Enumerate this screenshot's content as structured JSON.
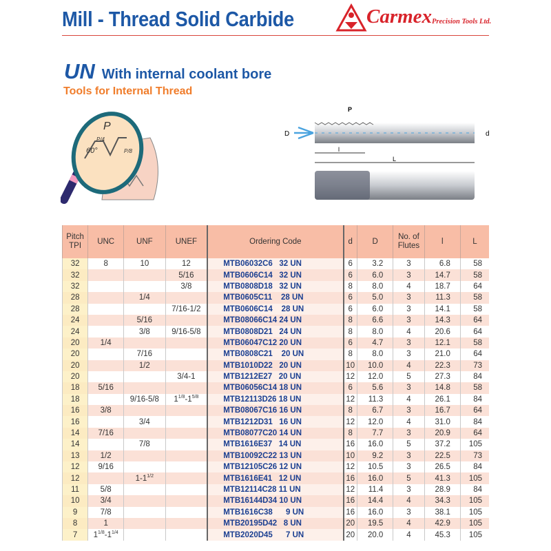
{
  "header": {
    "title": "Mill - Thread Solid Carbide",
    "logo_text": "Carmex",
    "logo_sub": "Precision Tools Ltd."
  },
  "section": {
    "type": "UN",
    "subtitle": "With internal coolant bore",
    "tagline": "Tools for Internal Thread"
  },
  "diagram": {
    "labels": {
      "P": "P",
      "P4": "P/4",
      "P8": "P/8",
      "angle": "60°",
      "D": "D",
      "d": "d",
      "l": "l",
      "L": "L"
    }
  },
  "colors": {
    "title": "#1d58a6",
    "accent": "#f07d2b",
    "brand": "#d8232a",
    "header_bg": "#f8bda6",
    "row_alt": "#fbe1d7",
    "code": "#1b3f91"
  },
  "table": {
    "headers": [
      "Pitch\nTPI",
      "UNC",
      "UNF",
      "UNEF",
      "Ordering Code",
      "d",
      "D",
      "No. of\nFlutes",
      "l",
      "L"
    ],
    "rows": [
      [
        "32",
        "8",
        "10",
        "12",
        "MTB06032C6   32 UN",
        "6",
        "3.2",
        "3",
        "6.8",
        "58"
      ],
      [
        "32",
        "",
        "",
        "5/16",
        "MTB0606C14   32 UN",
        "6",
        "6.0",
        "3",
        "14.7",
        "58"
      ],
      [
        "32",
        "",
        "",
        "3/8",
        "MTB0808D18   32 UN",
        "8",
        "8.0",
        "4",
        "18.7",
        "64"
      ],
      [
        "28",
        "",
        "1/4",
        "",
        "MTB0605C11    28 UN",
        "6",
        "5.0",
        "3",
        "11.3",
        "58"
      ],
      [
        "28",
        "",
        "",
        "7/16-1/2",
        "MTB0606C14    28 UN",
        "6",
        "6.0",
        "3",
        "14.1",
        "58"
      ],
      [
        "24",
        "",
        "5/16",
        "",
        "MTB08066C14 24 UN",
        "8",
        "6.6",
        "3",
        "14.3",
        "64"
      ],
      [
        "24",
        "",
        "3/8",
        "9/16-5/8",
        "MTB0808D21   24 UN",
        "8",
        "8.0",
        "4",
        "20.6",
        "64"
      ],
      [
        "20",
        "1/4",
        "",
        "",
        "MTB06047C12 20 UN",
        "6",
        "4.7",
        "3",
        "12.1",
        "58"
      ],
      [
        "20",
        "",
        "7/16",
        "",
        "MTB0808C21    20 UN",
        "8",
        "8.0",
        "3",
        "21.0",
        "64"
      ],
      [
        "20",
        "",
        "1/2",
        "",
        "MTB1010D22   20 UN",
        "10",
        "10.0",
        "4",
        "22.3",
        "73"
      ],
      [
        "20",
        "",
        "",
        "3/4-1",
        "MTB1212E27   20 UN",
        "12",
        "12.0",
        "5",
        "27.3",
        "84"
      ],
      [
        "18",
        "5/16",
        "",
        "",
        "MTB06056C14 18 UN",
        "6",
        "5.6",
        "3",
        "14.8",
        "58"
      ],
      [
        "18",
        "",
        "9/16-5/8",
        [
          [
            "1",
            "1/8"
          ],
          [
            "-1",
            "5/8"
          ]
        ],
        "MTB12113D26 18 UN",
        "12",
        "11.3",
        "4",
        "26.1",
        "84"
      ],
      [
        "16",
        "3/8",
        "",
        "",
        "MTB08067C16 16 UN",
        "8",
        "6.7",
        "3",
        "16.7",
        "64"
      ],
      [
        "16",
        "",
        "3/4",
        "",
        "MTB1212D31   16 UN",
        "12",
        "12.0",
        "4",
        "31.0",
        "84"
      ],
      [
        "14",
        "7/16",
        "",
        "",
        "MTB08077C20 14 UN",
        "8",
        "7.7",
        "3",
        "20.9",
        "64"
      ],
      [
        "14",
        "",
        "7/8",
        "",
        "MTB1616E37   14 UN",
        "16",
        "16.0",
        "5",
        "37.2",
        "105"
      ],
      [
        "13",
        "1/2",
        "",
        "",
        "MTB10092C22 13 UN",
        "10",
        "9.2",
        "3",
        "22.5",
        "73"
      ],
      [
        "12",
        "9/16",
        "",
        "",
        "MTB12105C26 12 UN",
        "12",
        "10.5",
        "3",
        "26.5",
        "84"
      ],
      [
        "12",
        "",
        [
          [
            "1-1",
            "1/2"
          ]
        ],
        "",
        "MTB1616E41   12 UN",
        "16",
        "16.0",
        "5",
        "41.3",
        "105"
      ],
      [
        "11",
        "5/8",
        "",
        "",
        "MTB12114C28 11 UN",
        "12",
        "11.4",
        "3",
        "28.9",
        "84"
      ],
      [
        "10",
        "3/4",
        "",
        "",
        "MTB16144D34 10 UN",
        "16",
        "14.4",
        "4",
        "34.3",
        "105"
      ],
      [
        "9",
        "7/8",
        "",
        "",
        "MTB1616C38      9 UN",
        "16",
        "16.0",
        "3",
        "38.1",
        "105"
      ],
      [
        "8",
        "1",
        "",
        "",
        "MTB20195D42   8 UN",
        "20",
        "19.5",
        "4",
        "42.9",
        "105"
      ],
      [
        "7",
        [
          [
            "1",
            "1/8"
          ],
          [
            "-1",
            "1/4"
          ]
        ],
        "",
        "",
        "MTB2020D45      7 UN",
        "20",
        "20.0",
        "4",
        "45.3",
        "105"
      ]
    ]
  }
}
